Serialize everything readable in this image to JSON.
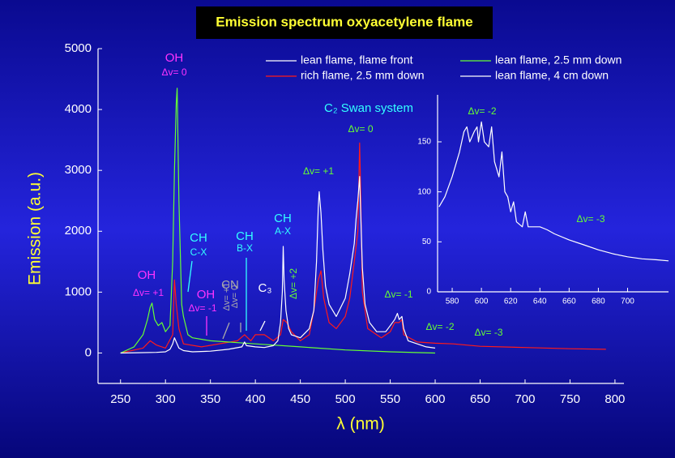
{
  "chart_data": [
    {
      "type": "line",
      "title": "Emission spectrum oxyacetylene flame",
      "xlabel": "λ (nm)",
      "ylabel": "Emission (a.u.)",
      "xlim": [
        225,
        810
      ],
      "ylim": [
        -500,
        5000
      ],
      "xticks": [
        250,
        300,
        350,
        400,
        450,
        500,
        550,
        600,
        650,
        700,
        750,
        800
      ],
      "yticks": [
        0,
        1000,
        2000,
        3000,
        4000,
        5000
      ],
      "series": [
        {
          "name": "lean flame, flame front",
          "color": "#ffffff",
          "x": [
            250,
            270,
            290,
            300,
            305,
            308,
            310,
            312,
            315,
            320,
            330,
            350,
            370,
            385,
            388,
            390,
            400,
            410,
            420,
            425,
            428,
            430,
            431,
            432,
            434,
            437,
            440,
            450,
            460,
            465,
            468,
            470,
            471,
            473,
            475,
            478,
            482,
            490,
            500,
            505,
            510,
            512,
            514,
            516,
            517,
            519,
            522,
            527,
            535,
            545,
            550,
            555,
            558,
            560,
            563,
            565,
            570,
            580,
            590,
            600
          ],
          "values": [
            0,
            5,
            10,
            20,
            60,
            150,
            250,
            180,
            80,
            40,
            20,
            30,
            60,
            100,
            180,
            120,
            100,
            90,
            120,
            200,
            500,
            1000,
            1750,
            1200,
            700,
            400,
            300,
            250,
            400,
            700,
            1500,
            2400,
            2650,
            2300,
            1700,
            1100,
            800,
            600,
            900,
            1300,
            1800,
            2200,
            2500,
            2900,
            2400,
            1400,
            800,
            500,
            350,
            350,
            450,
            550,
            650,
            550,
            600,
            400,
            200,
            150,
            100,
            80
          ]
        },
        {
          "name": "lean flame, 2.5 mm down",
          "color": "#66ff33",
          "x": [
            250,
            265,
            275,
            280,
            283,
            285,
            288,
            292,
            296,
            300,
            305,
            308,
            310,
            312,
            313,
            315,
            318,
            320,
            325,
            330,
            350,
            400,
            450,
            500,
            550,
            600
          ],
          "values": [
            0,
            100,
            300,
            550,
            750,
            820,
            550,
            450,
            500,
            350,
            450,
            1500,
            3000,
            4100,
            4350,
            2500,
            800,
            600,
            300,
            250,
            200,
            150,
            100,
            50,
            20,
            0
          ]
        },
        {
          "name": "rich flame, 2.5 mm down",
          "color": "#ff1a1a",
          "x": [
            250,
            275,
            283,
            290,
            300,
            308,
            310,
            312,
            315,
            320,
            340,
            380,
            388,
            395,
            400,
            410,
            420,
            428,
            431,
            435,
            440,
            450,
            460,
            465,
            470,
            473,
            476,
            482,
            490,
            500,
            505,
            510,
            514,
            516,
            517,
            519,
            525,
            540,
            550,
            555,
            560,
            563,
            565,
            580,
            600,
            620,
            650,
            700,
            750,
            790
          ],
          "values": [
            0,
            80,
            200,
            130,
            80,
            300,
            1200,
            800,
            400,
            150,
            100,
            200,
            300,
            200,
            300,
            300,
            200,
            300,
            550,
            500,
            350,
            200,
            300,
            700,
            1200,
            1350,
            900,
            500,
            400,
            600,
            900,
            1500,
            2000,
            3450,
            2800,
            1000,
            400,
            250,
            350,
            500,
            500,
            550,
            300,
            180,
            160,
            150,
            110,
            90,
            70,
            60
          ]
        }
      ],
      "annotations": [
        {
          "text": "OH",
          "color": "#ff33ff"
        },
        {
          "text": "Δv= 0",
          "color": "#ff33ff"
        },
        {
          "text": "OH",
          "color": "#ff33ff"
        },
        {
          "text": "Δv= +1",
          "color": "#ff33ff"
        },
        {
          "text": "CH",
          "color": "#33ffff"
        },
        {
          "text": "C-X",
          "color": "#33ffff"
        },
        {
          "text": "OH",
          "color": "#ff33ff"
        },
        {
          "text": "Δv= -1",
          "color": "#ff33ff"
        },
        {
          "text": "CN",
          "color": "#aaaaaa"
        },
        {
          "text": "Δv= +1",
          "color": "#aaaaaa"
        },
        {
          "text": "Δv= 0",
          "color": "#aaaaaa"
        },
        {
          "text": "CH",
          "color": "#33ffff"
        },
        {
          "text": "B-X",
          "color": "#33ffff"
        },
        {
          "text": "C₃",
          "color": "#ffffff"
        },
        {
          "text": "CH",
          "color": "#33ffff"
        },
        {
          "text": "A-X",
          "color": "#33ffff"
        },
        {
          "text": "Δv= +2",
          "color": "#66ff33"
        },
        {
          "text": "Δv= +1",
          "color": "#66ff33"
        },
        {
          "text": "C₂ Swan system",
          "color": "#33ffff"
        },
        {
          "text": "Δv= 0",
          "color": "#66ff33"
        },
        {
          "text": "Δv= -1",
          "color": "#66ff33"
        },
        {
          "text": "Δv= -2",
          "color": "#66ff33"
        },
        {
          "text": "Δv= -3",
          "color": "#66ff33"
        }
      ]
    },
    {
      "type": "line",
      "xlim": [
        570,
        728
      ],
      "ylim": [
        0,
        197
      ],
      "xticks": [
        580,
        600,
        620,
        640,
        660,
        680,
        700
      ],
      "yticks": [
        0,
        50,
        100,
        150
      ],
      "series": [
        {
          "name": "lean flame, 4 cm down",
          "color": "#ffffff",
          "x": [
            571,
            575,
            580,
            585,
            588,
            590,
            592,
            595,
            597,
            598,
            600,
            602,
            605,
            607,
            609,
            612,
            614,
            616,
            618,
            620,
            622,
            624,
            628,
            630,
            632,
            640,
            645,
            650,
            660,
            670,
            680,
            690,
            700,
            710,
            720,
            728
          ],
          "values": [
            85,
            95,
            115,
            140,
            160,
            165,
            150,
            160,
            165,
            150,
            170,
            150,
            145,
            165,
            130,
            115,
            140,
            100,
            95,
            80,
            90,
            70,
            65,
            80,
            65,
            65,
            62,
            58,
            52,
            47,
            42,
            38,
            35,
            33,
            32,
            31
          ]
        }
      ],
      "annotations": [
        {
          "text": "Δv= -2",
          "color": "#66ff33"
        },
        {
          "text": "Δv= -3",
          "color": "#66ff33"
        }
      ]
    }
  ]
}
